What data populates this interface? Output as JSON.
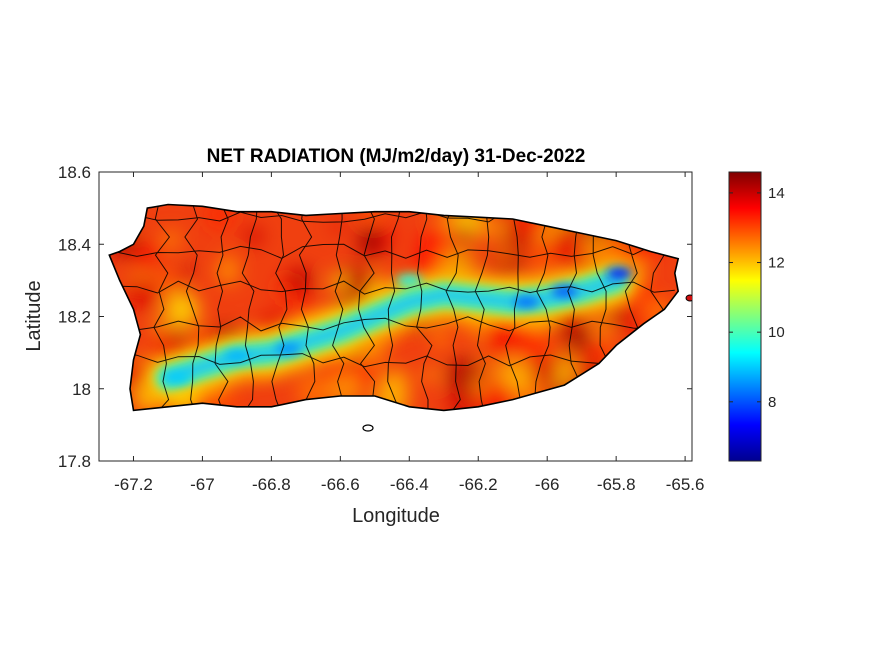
{
  "figure": {
    "title": "NET RADIATION (MJ/m2/day) 31-Dec-2022",
    "xlabel": "Longitude",
    "ylabel": "Latitude"
  },
  "map_data": {
    "region": "Puerto Rico",
    "variable": "net radiation",
    "units": "MJ/m2/day",
    "date": "31-Dec-2022",
    "xlim": [
      -67.3,
      -65.58
    ],
    "ylim": [
      17.8,
      18.6
    ],
    "x_ticks": [
      -67.2,
      -67,
      -66.8,
      -66.6,
      -66.4,
      -66.2,
      -66,
      -65.8,
      -65.6
    ],
    "x_tick_labels": [
      "-67.2",
      "-67",
      "-66.8",
      "-66.6",
      "-66.4",
      "-66.2",
      "-66",
      "-65.8",
      "-65.6"
    ],
    "y_ticks": [
      17.8,
      18,
      18.2,
      18.4,
      18.6
    ],
    "y_tick_labels": [
      "17.8",
      "18",
      "18.2",
      "18.4",
      "18.6"
    ],
    "colormap": "jet",
    "colorbar": {
      "range": [
        6.3,
        14.6
      ],
      "ticks": [
        8,
        10,
        12,
        14
      ],
      "tick_labels": [
        "8",
        "10",
        "12",
        "14"
      ]
    },
    "coastline": [
      [
        -67.27,
        18.37
      ],
      [
        -67.24,
        18.38
      ],
      [
        -67.2,
        18.4
      ],
      [
        -67.17,
        18.45
      ],
      [
        -67.16,
        18.5
      ],
      [
        -67.1,
        18.51
      ],
      [
        -67.0,
        18.505
      ],
      [
        -66.9,
        18.49
      ],
      [
        -66.8,
        18.49
      ],
      [
        -66.7,
        18.48
      ],
      [
        -66.6,
        18.485
      ],
      [
        -66.5,
        18.49
      ],
      [
        -66.4,
        18.49
      ],
      [
        -66.3,
        18.48
      ],
      [
        -66.2,
        18.475
      ],
      [
        -66.1,
        18.47
      ],
      [
        -66.0,
        18.45
      ],
      [
        -65.9,
        18.43
      ],
      [
        -65.8,
        18.41
      ],
      [
        -65.7,
        18.38
      ],
      [
        -65.62,
        18.36
      ],
      [
        -65.63,
        18.32
      ],
      [
        -65.62,
        18.27
      ],
      [
        -65.66,
        18.22
      ],
      [
        -65.72,
        18.18
      ],
      [
        -65.8,
        18.12
      ],
      [
        -65.85,
        18.07
      ],
      [
        -65.95,
        18.01
      ],
      [
        -66.1,
        17.97
      ],
      [
        -66.2,
        17.95
      ],
      [
        -66.3,
        17.94
      ],
      [
        -66.4,
        17.95
      ],
      [
        -66.5,
        17.98
      ],
      [
        -66.6,
        17.98
      ],
      [
        -66.7,
        17.97
      ],
      [
        -66.8,
        17.95
      ],
      [
        -66.9,
        17.95
      ],
      [
        -67.0,
        17.96
      ],
      [
        -67.1,
        17.95
      ],
      [
        -67.2,
        17.94
      ],
      [
        -67.21,
        18.0
      ],
      [
        -67.2,
        18.08
      ],
      [
        -67.18,
        18.15
      ],
      [
        -67.2,
        18.22
      ],
      [
        -67.24,
        18.3
      ],
      [
        -67.27,
        18.37
      ]
    ],
    "low_band": [
      [
        -67.1,
        18.03
      ],
      [
        -67.0,
        18.06
      ],
      [
        -66.9,
        18.09
      ],
      [
        -66.8,
        18.1
      ],
      [
        -66.7,
        18.13
      ],
      [
        -66.6,
        18.16
      ],
      [
        -66.5,
        18.2
      ],
      [
        -66.4,
        18.24
      ],
      [
        -66.3,
        18.26
      ],
      [
        -66.2,
        18.25
      ],
      [
        -66.1,
        18.24
      ],
      [
        -66.0,
        18.25
      ],
      [
        -65.9,
        18.27
      ],
      [
        -65.8,
        18.3
      ]
    ],
    "low_spots": [
      {
        "lon": -65.79,
        "lat": 18.32,
        "value": 7.5
      },
      {
        "lon": -65.95,
        "lat": 18.27,
        "value": 8.0
      },
      {
        "lon": -66.06,
        "lat": 18.24,
        "value": 8.2
      },
      {
        "lon": -66.75,
        "lat": 18.11,
        "value": 8.5
      },
      {
        "lon": -66.9,
        "lat": 18.09,
        "value": 8.8
      },
      {
        "lon": -67.07,
        "lat": 18.03,
        "value": 9.0
      },
      {
        "lon": -66.4,
        "lat": 18.3,
        "value": 9.5
      }
    ],
    "colors": {
      "axis": "#262626",
      "border": "#000000"
    }
  }
}
